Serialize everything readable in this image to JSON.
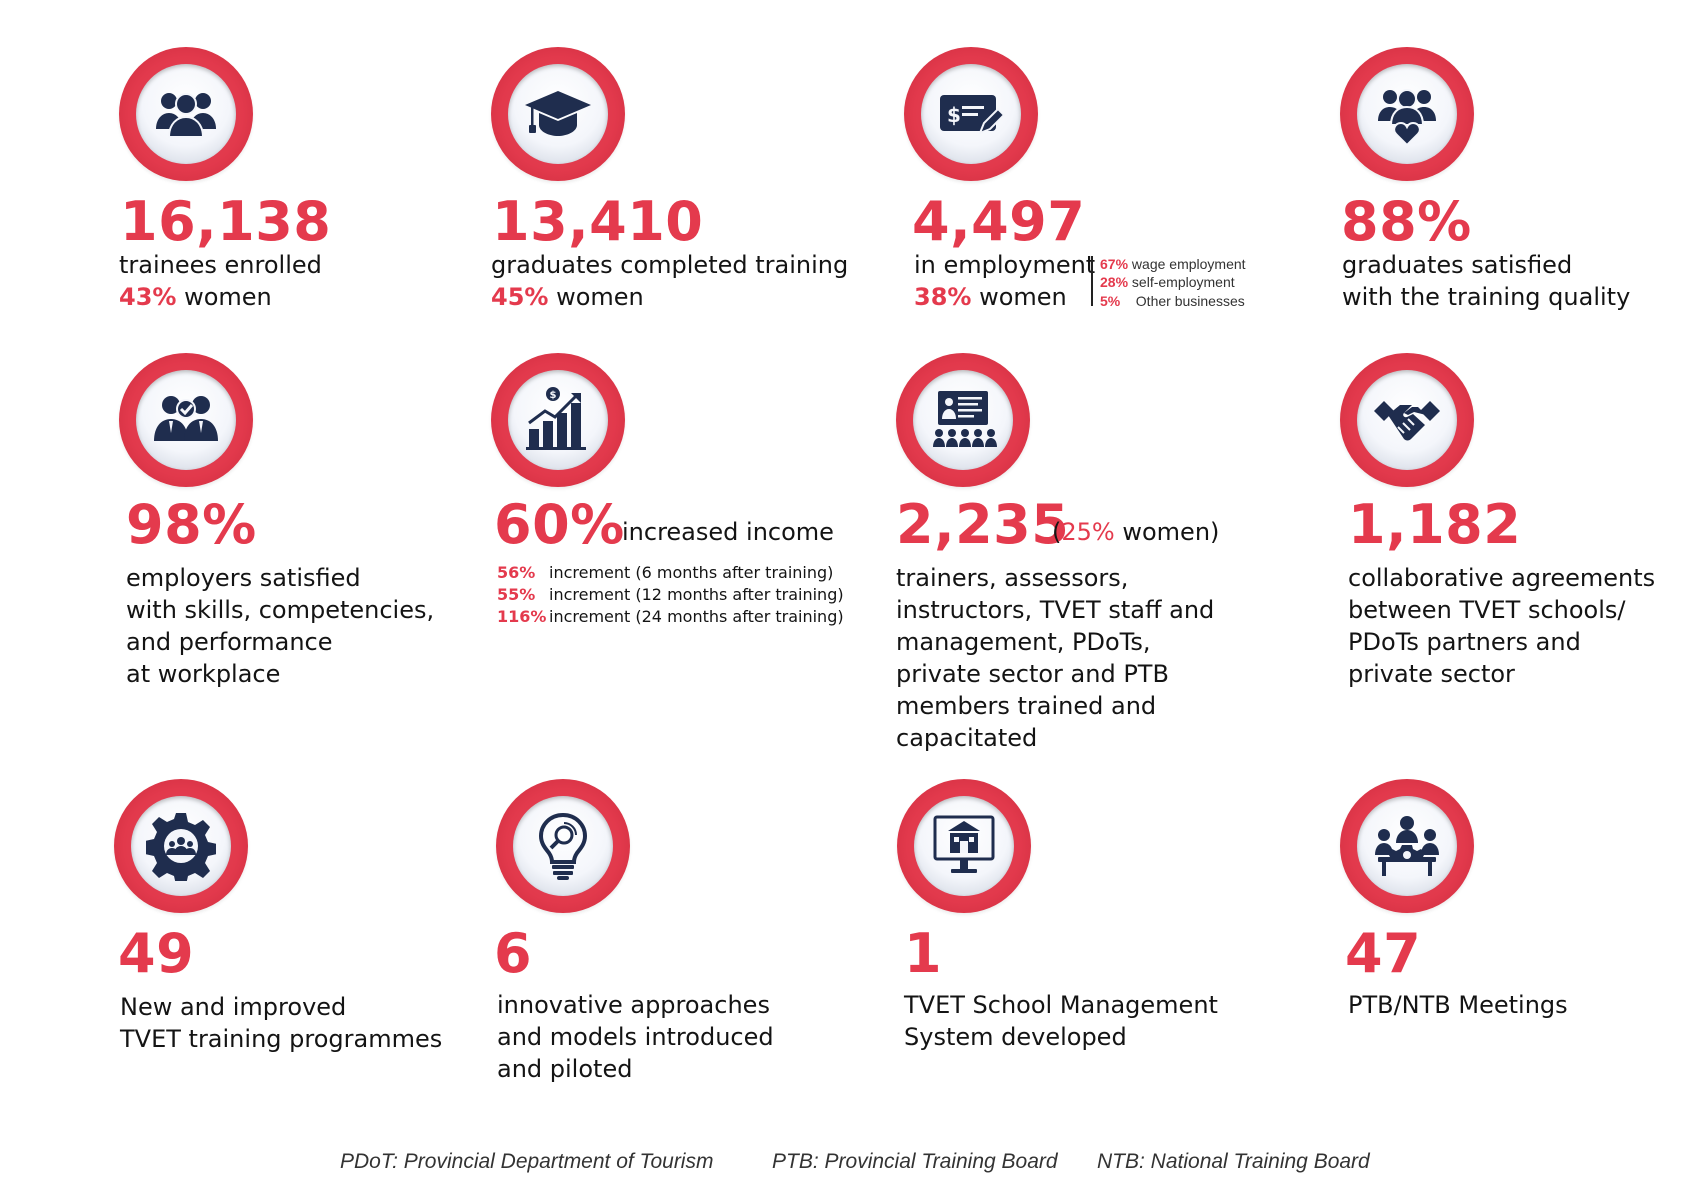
{
  "stats": [
    {
      "icon": "group-people-icon",
      "value": "16,138",
      "line1": "trainees enrolled",
      "pct": "43%",
      "pct_suffix": "women"
    },
    {
      "icon": "graduation-cap-icon",
      "value": "13,410",
      "line1": "graduates completed training",
      "pct": "45%",
      "pct_suffix": "women"
    },
    {
      "icon": "paycheck-icon",
      "value": "4,497",
      "line1": "in employment",
      "pct": "38%",
      "pct_suffix": "women",
      "breakdown": [
        {
          "pct": "67%",
          "label": "wage employment"
        },
        {
          "pct": "28%",
          "label": "self-employment"
        },
        {
          "pct": "5%",
          "label": "Other businesses"
        }
      ]
    },
    {
      "icon": "people-heart-icon",
      "value": "88%",
      "line1": "graduates satisfied",
      "line2": "with the training quality"
    },
    {
      "icon": "employers-check-icon",
      "value": "98%",
      "lines": [
        "employers satisfied",
        "with skills, competencies,",
        "and performance",
        "at workplace"
      ]
    },
    {
      "icon": "growth-chart-icon",
      "value": "60%",
      "value_suffix": "increased income",
      "increments": [
        {
          "pct": "56%",
          "label": "increment (6 months after training)"
        },
        {
          "pct": "55%",
          "label": "increment (12 months after training)"
        },
        {
          "pct": "116%",
          "label": "increment (24 months after training)"
        }
      ]
    },
    {
      "icon": "presentation-icon",
      "value": "2,235",
      "paren_open": "(",
      "paren_pct": "25%",
      "paren_suffix": "women)",
      "lines": [
        "trainers, assessors,",
        "instructors, TVET staff and",
        "management, PDoTs,",
        "private sector and PTB",
        "members trained and",
        "capacitated"
      ]
    },
    {
      "icon": "handshake-icon",
      "value": "1,182",
      "lines": [
        "collaborative agreements",
        "between TVET schools/",
        "PDoTs partners and",
        "private sector"
      ]
    },
    {
      "icon": "gear-people-icon",
      "value": "49",
      "lines": [
        "New and improved",
        "TVET training programmes"
      ]
    },
    {
      "icon": "lightbulb-icon",
      "value": "6",
      "lines": [
        "innovative approaches",
        "and models introduced",
        "and piloted"
      ]
    },
    {
      "icon": "school-monitor-icon",
      "value": "1",
      "lines": [
        "TVET School Management",
        "System developed"
      ]
    },
    {
      "icon": "meeting-table-icon",
      "value": "47",
      "lines": [
        "PTB/NTB Meetings"
      ]
    }
  ],
  "footer": {
    "pdot": "PDoT: Provincial Department of Tourism",
    "ptb": "PTB: Provincial Training Board",
    "ntb": "NTB: National Training Board"
  },
  "colors": {
    "accent": "#e43a4d",
    "icon_navy": "#1f2d4e"
  }
}
